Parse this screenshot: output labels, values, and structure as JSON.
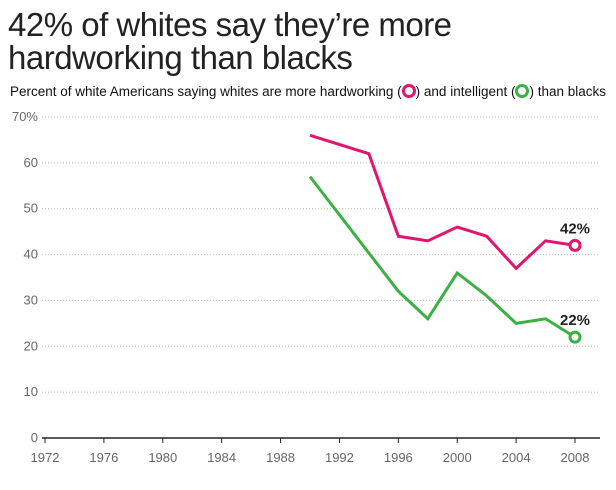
{
  "chart_data": {
    "type": "line",
    "title": "42% of whites say they’re more hardworking than blacks",
    "subtitle": {
      "part1": "Percent of white Americans saying whites are more hardworking (",
      "part2": ") and intelligent (",
      "part3": ") than blacks"
    },
    "xlabel": "",
    "ylabel": "",
    "xlim": [
      1972,
      2008
    ],
    "ylim": [
      0,
      70
    ],
    "xticks": [
      "1972",
      "1976",
      "1980",
      "1984",
      "1988",
      "1992",
      "1996",
      "2000",
      "2004",
      "2008"
    ],
    "yticks": [
      {
        "v": 0,
        "label": "0"
      },
      {
        "v": 10,
        "label": "10"
      },
      {
        "v": 20,
        "label": "20"
      },
      {
        "v": 30,
        "label": "30"
      },
      {
        "v": 40,
        "label": "40"
      },
      {
        "v": 50,
        "label": "50"
      },
      {
        "v": 60,
        "label": "60"
      },
      {
        "v": 70,
        "label": "70%"
      }
    ],
    "grid": true,
    "series": [
      {
        "name": "hardworking",
        "color": "#e0156e",
        "x": [
          1990,
          1994,
          1996,
          1998,
          2000,
          2002,
          2004,
          2006,
          2008
        ],
        "values": [
          66,
          62,
          44,
          43,
          46,
          44,
          37,
          43,
          42
        ],
        "end_label": "42%"
      },
      {
        "name": "intelligent",
        "color": "#3bb143",
        "x": [
          1990,
          1996,
          1998,
          2000,
          2002,
          2004,
          2006,
          2008
        ],
        "values": [
          57,
          32,
          26,
          36,
          31,
          25,
          26,
          22
        ],
        "end_label": "22%"
      }
    ]
  }
}
